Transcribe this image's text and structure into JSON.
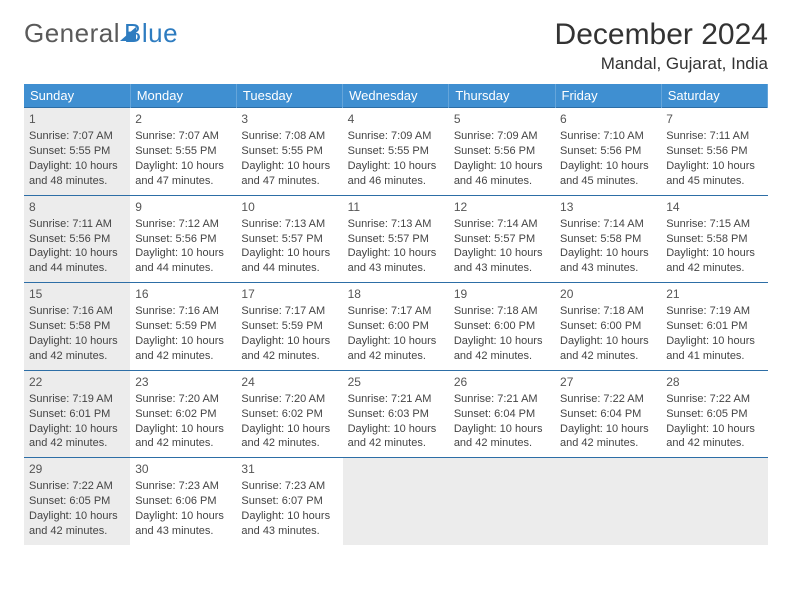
{
  "logo": {
    "part1": "General",
    "part2": "Blue"
  },
  "title": "December 2024",
  "location": "Mandal, Gujarat, India",
  "style": {
    "header_bg": "#3f8fd1",
    "header_text": "#ffffff",
    "row_border": "#2d6ea6",
    "shaded_bg": "#ececec",
    "page_bg": "#ffffff",
    "text_color": "#444444",
    "title_fontsize": 30,
    "location_fontsize": 17,
    "dayhead_fontsize": 13,
    "cell_fontsize": 11
  },
  "day_headers": [
    "Sunday",
    "Monday",
    "Tuesday",
    "Wednesday",
    "Thursday",
    "Friday",
    "Saturday"
  ],
  "weeks": [
    [
      {
        "num": "1",
        "sunrise": "Sunrise: 7:07 AM",
        "sunset": "Sunset: 5:55 PM",
        "daylight": "Daylight: 10 hours and 48 minutes."
      },
      {
        "num": "2",
        "sunrise": "Sunrise: 7:07 AM",
        "sunset": "Sunset: 5:55 PM",
        "daylight": "Daylight: 10 hours and 47 minutes."
      },
      {
        "num": "3",
        "sunrise": "Sunrise: 7:08 AM",
        "sunset": "Sunset: 5:55 PM",
        "daylight": "Daylight: 10 hours and 47 minutes."
      },
      {
        "num": "4",
        "sunrise": "Sunrise: 7:09 AM",
        "sunset": "Sunset: 5:55 PM",
        "daylight": "Daylight: 10 hours and 46 minutes."
      },
      {
        "num": "5",
        "sunrise": "Sunrise: 7:09 AM",
        "sunset": "Sunset: 5:56 PM",
        "daylight": "Daylight: 10 hours and 46 minutes."
      },
      {
        "num": "6",
        "sunrise": "Sunrise: 7:10 AM",
        "sunset": "Sunset: 5:56 PM",
        "daylight": "Daylight: 10 hours and 45 minutes."
      },
      {
        "num": "7",
        "sunrise": "Sunrise: 7:11 AM",
        "sunset": "Sunset: 5:56 PM",
        "daylight": "Daylight: 10 hours and 45 minutes."
      }
    ],
    [
      {
        "num": "8",
        "sunrise": "Sunrise: 7:11 AM",
        "sunset": "Sunset: 5:56 PM",
        "daylight": "Daylight: 10 hours and 44 minutes."
      },
      {
        "num": "9",
        "sunrise": "Sunrise: 7:12 AM",
        "sunset": "Sunset: 5:56 PM",
        "daylight": "Daylight: 10 hours and 44 minutes."
      },
      {
        "num": "10",
        "sunrise": "Sunrise: 7:13 AM",
        "sunset": "Sunset: 5:57 PM",
        "daylight": "Daylight: 10 hours and 44 minutes."
      },
      {
        "num": "11",
        "sunrise": "Sunrise: 7:13 AM",
        "sunset": "Sunset: 5:57 PM",
        "daylight": "Daylight: 10 hours and 43 minutes."
      },
      {
        "num": "12",
        "sunrise": "Sunrise: 7:14 AM",
        "sunset": "Sunset: 5:57 PM",
        "daylight": "Daylight: 10 hours and 43 minutes."
      },
      {
        "num": "13",
        "sunrise": "Sunrise: 7:14 AM",
        "sunset": "Sunset: 5:58 PM",
        "daylight": "Daylight: 10 hours and 43 minutes."
      },
      {
        "num": "14",
        "sunrise": "Sunrise: 7:15 AM",
        "sunset": "Sunset: 5:58 PM",
        "daylight": "Daylight: 10 hours and 42 minutes."
      }
    ],
    [
      {
        "num": "15",
        "sunrise": "Sunrise: 7:16 AM",
        "sunset": "Sunset: 5:58 PM",
        "daylight": "Daylight: 10 hours and 42 minutes."
      },
      {
        "num": "16",
        "sunrise": "Sunrise: 7:16 AM",
        "sunset": "Sunset: 5:59 PM",
        "daylight": "Daylight: 10 hours and 42 minutes."
      },
      {
        "num": "17",
        "sunrise": "Sunrise: 7:17 AM",
        "sunset": "Sunset: 5:59 PM",
        "daylight": "Daylight: 10 hours and 42 minutes."
      },
      {
        "num": "18",
        "sunrise": "Sunrise: 7:17 AM",
        "sunset": "Sunset: 6:00 PM",
        "daylight": "Daylight: 10 hours and 42 minutes."
      },
      {
        "num": "19",
        "sunrise": "Sunrise: 7:18 AM",
        "sunset": "Sunset: 6:00 PM",
        "daylight": "Daylight: 10 hours and 42 minutes."
      },
      {
        "num": "20",
        "sunrise": "Sunrise: 7:18 AM",
        "sunset": "Sunset: 6:00 PM",
        "daylight": "Daylight: 10 hours and 42 minutes."
      },
      {
        "num": "21",
        "sunrise": "Sunrise: 7:19 AM",
        "sunset": "Sunset: 6:01 PM",
        "daylight": "Daylight: 10 hours and 41 minutes."
      }
    ],
    [
      {
        "num": "22",
        "sunrise": "Sunrise: 7:19 AM",
        "sunset": "Sunset: 6:01 PM",
        "daylight": "Daylight: 10 hours and 42 minutes."
      },
      {
        "num": "23",
        "sunrise": "Sunrise: 7:20 AM",
        "sunset": "Sunset: 6:02 PM",
        "daylight": "Daylight: 10 hours and 42 minutes."
      },
      {
        "num": "24",
        "sunrise": "Sunrise: 7:20 AM",
        "sunset": "Sunset: 6:02 PM",
        "daylight": "Daylight: 10 hours and 42 minutes."
      },
      {
        "num": "25",
        "sunrise": "Sunrise: 7:21 AM",
        "sunset": "Sunset: 6:03 PM",
        "daylight": "Daylight: 10 hours and 42 minutes."
      },
      {
        "num": "26",
        "sunrise": "Sunrise: 7:21 AM",
        "sunset": "Sunset: 6:04 PM",
        "daylight": "Daylight: 10 hours and 42 minutes."
      },
      {
        "num": "27",
        "sunrise": "Sunrise: 7:22 AM",
        "sunset": "Sunset: 6:04 PM",
        "daylight": "Daylight: 10 hours and 42 minutes."
      },
      {
        "num": "28",
        "sunrise": "Sunrise: 7:22 AM",
        "sunset": "Sunset: 6:05 PM",
        "daylight": "Daylight: 10 hours and 42 minutes."
      }
    ],
    [
      {
        "num": "29",
        "sunrise": "Sunrise: 7:22 AM",
        "sunset": "Sunset: 6:05 PM",
        "daylight": "Daylight: 10 hours and 42 minutes."
      },
      {
        "num": "30",
        "sunrise": "Sunrise: 7:23 AM",
        "sunset": "Sunset: 6:06 PM",
        "daylight": "Daylight: 10 hours and 43 minutes."
      },
      {
        "num": "31",
        "sunrise": "Sunrise: 7:23 AM",
        "sunset": "Sunset: 6:07 PM",
        "daylight": "Daylight: 10 hours and 43 minutes."
      },
      {
        "empty": true
      },
      {
        "empty": true
      },
      {
        "empty": true
      },
      {
        "empty": true
      }
    ]
  ]
}
